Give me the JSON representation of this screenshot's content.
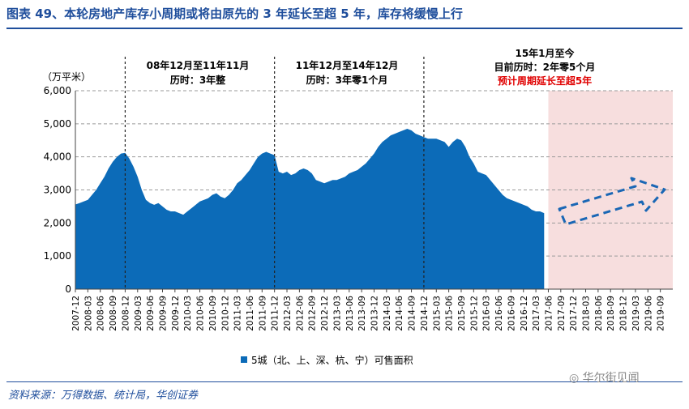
{
  "page": {
    "title": "图表 49、本轮房地产库存小周期或将由原先的 3 年延长至超 5 年，库存将缓慢上行",
    "source": "资料来源：万得数据、统计局，华创证券",
    "watermark": "华尔街见闻"
  },
  "annotations": [
    {
      "line1": "08年12月至11年11月",
      "line2": "历时：3年整",
      "line3": ""
    },
    {
      "line1": "11年12月至14年12月",
      "line2": "历时：3年零1个月",
      "line3": ""
    },
    {
      "line1": "15年1月至今",
      "line2": "目前历时：2年零5个月",
      "line3": "预计周期延长至超5年"
    }
  ],
  "colors": {
    "area": "#0c6bb8",
    "forecast_bg": "#f7dede",
    "annotation_red": "#e00000",
    "title": "#1f4e9c"
  },
  "chart_data": {
    "type": "area",
    "ylabel": "（万平米）",
    "ylim": [
      0,
      6000
    ],
    "yticks": [
      0,
      1000,
      2000,
      3000,
      4000,
      5000,
      6000
    ],
    "ytick_labels": [
      "0",
      "1,000",
      "2,000",
      "3,000",
      "4,000",
      "5,000",
      "6,000"
    ],
    "x_tick_labels": [
      "2007-12",
      "2008-03",
      "2008-06",
      "2008-09",
      "2008-12",
      "2009-03",
      "2009-06",
      "2009-09",
      "2009-12",
      "2010-03",
      "2010-06",
      "2010-09",
      "2010-12",
      "2011-03",
      "2011-06",
      "2011-09",
      "2011-12",
      "2012-03",
      "2012-06",
      "2012-09",
      "2012-12",
      "2013-03",
      "2013-06",
      "2013-09",
      "2013-12",
      "2014-03",
      "2014-06",
      "2014-09",
      "2014-12",
      "2015-03",
      "2015-06",
      "2015-09",
      "2015-12",
      "2016-03",
      "2016-06",
      "2016-09",
      "2016-12",
      "2017-03",
      "2017-06",
      "2017-09",
      "2017-12",
      "2018-03",
      "2018-06",
      "2018-09",
      "2018-12",
      "2019-03",
      "2019-06",
      "2019-09"
    ],
    "grid": true,
    "legend_position": "bottom",
    "cycle_dividers": [
      "2008-12",
      "2011-12",
      "2014-12"
    ],
    "forecast_range": [
      "2017-06",
      "2019-12"
    ],
    "series": [
      {
        "name": "5城（北、上、深、杭、宁）可售面积",
        "x": [
          "2007-12",
          "2008-01",
          "2008-02",
          "2008-03",
          "2008-04",
          "2008-05",
          "2008-06",
          "2008-07",
          "2008-08",
          "2008-09",
          "2008-10",
          "2008-11",
          "2008-12",
          "2009-01",
          "2009-02",
          "2009-03",
          "2009-04",
          "2009-05",
          "2009-06",
          "2009-07",
          "2009-08",
          "2009-09",
          "2009-10",
          "2009-11",
          "2009-12",
          "2010-01",
          "2010-02",
          "2010-03",
          "2010-04",
          "2010-05",
          "2010-06",
          "2010-07",
          "2010-08",
          "2010-09",
          "2010-10",
          "2010-11",
          "2010-12",
          "2011-01",
          "2011-02",
          "2011-03",
          "2011-04",
          "2011-05",
          "2011-06",
          "2011-07",
          "2011-08",
          "2011-09",
          "2011-10",
          "2011-11",
          "2011-12",
          "2012-01",
          "2012-02",
          "2012-03",
          "2012-04",
          "2012-05",
          "2012-06",
          "2012-07",
          "2012-08",
          "2012-09",
          "2012-10",
          "2012-11",
          "2012-12",
          "2013-01",
          "2013-02",
          "2013-03",
          "2013-04",
          "2013-05",
          "2013-06",
          "2013-07",
          "2013-08",
          "2013-09",
          "2013-10",
          "2013-11",
          "2013-12",
          "2014-01",
          "2014-02",
          "2014-03",
          "2014-04",
          "2014-05",
          "2014-06",
          "2014-07",
          "2014-08",
          "2014-09",
          "2014-10",
          "2014-11",
          "2014-12",
          "2015-01",
          "2015-02",
          "2015-03",
          "2015-04",
          "2015-05",
          "2015-06",
          "2015-07",
          "2015-08",
          "2015-09",
          "2015-10",
          "2015-11",
          "2015-12",
          "2016-01",
          "2016-02",
          "2016-03",
          "2016-04",
          "2016-05",
          "2016-06",
          "2016-07",
          "2016-08",
          "2016-09",
          "2016-10",
          "2016-11",
          "2016-12",
          "2017-01",
          "2017-02",
          "2017-03",
          "2017-04",
          "2017-05"
        ],
        "values": [
          2560,
          2600,
          2650,
          2700,
          2850,
          3000,
          3200,
          3400,
          3650,
          3850,
          4000,
          4100,
          4120,
          3950,
          3700,
          3400,
          3000,
          2700,
          2600,
          2550,
          2600,
          2500,
          2400,
          2350,
          2350,
          2300,
          2250,
          2350,
          2450,
          2550,
          2650,
          2700,
          2750,
          2850,
          2900,
          2800,
          2750,
          2850,
          3000,
          3200,
          3300,
          3450,
          3600,
          3800,
          4000,
          4100,
          4150,
          4100,
          4050,
          3550,
          3500,
          3550,
          3450,
          3500,
          3600,
          3650,
          3600,
          3500,
          3300,
          3250,
          3200,
          3250,
          3300,
          3300,
          3350,
          3400,
          3500,
          3550,
          3600,
          3700,
          3800,
          3950,
          4100,
          4300,
          4450,
          4550,
          4650,
          4700,
          4750,
          4800,
          4850,
          4800,
          4700,
          4650,
          4600,
          4550,
          4550,
          4550,
          4500,
          4450,
          4300,
          4450,
          4550,
          4500,
          4300,
          4000,
          3800,
          3550,
          3500,
          3450,
          3300,
          3150,
          3000,
          2850,
          2750,
          2700,
          2650,
          2600,
          2550,
          2500,
          2400,
          2350,
          2350,
          2300
        ]
      }
    ]
  }
}
